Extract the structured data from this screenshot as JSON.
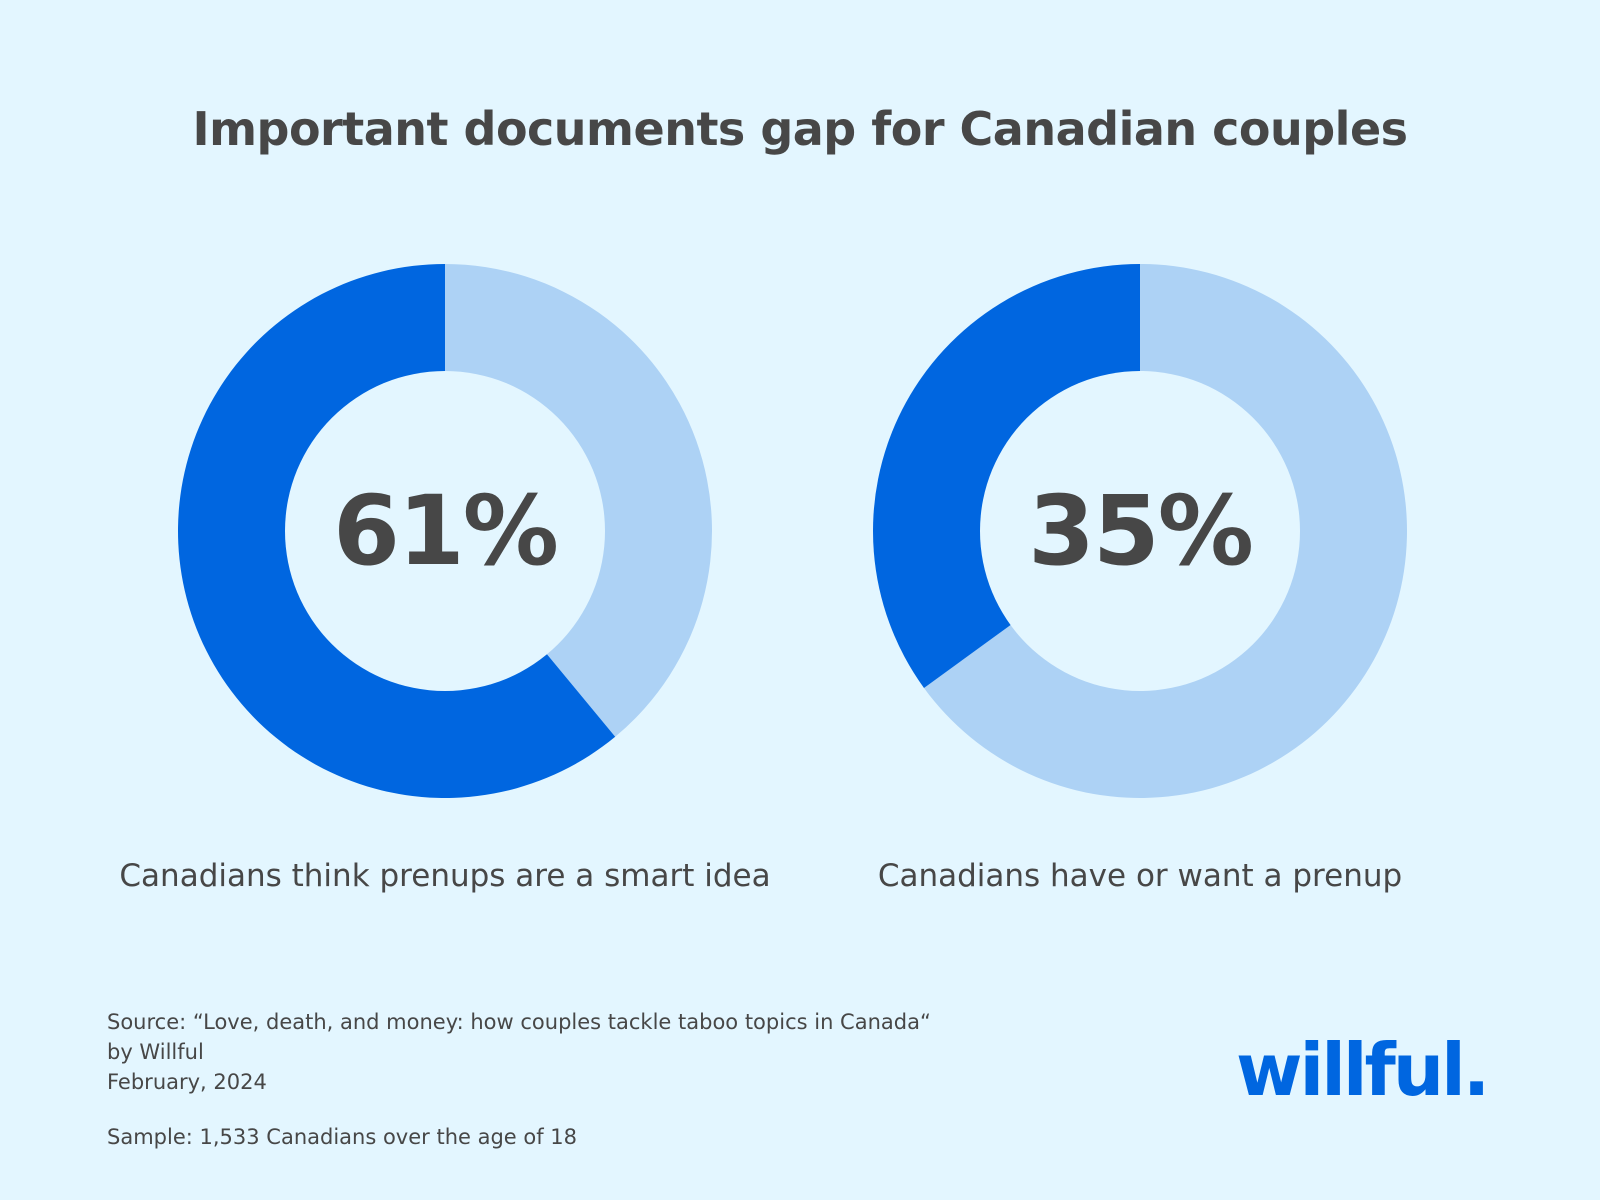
{
  "title": "Important documents gap for Canadian couples",
  "colors": {
    "background": "#e3f6ff",
    "primary": "#0066e0",
    "secondary": "#add2f5",
    "inner": "#e3f6ff",
    "text": "#474747"
  },
  "chart_data": [
    {
      "type": "pie",
      "value_percent": 61,
      "center_label": "61%",
      "caption": "Canadians think prenups are a smart idea"
    },
    {
      "type": "pie",
      "value_percent": 35,
      "center_label": "35%",
      "caption": "Canadians have or want a prenup"
    }
  ],
  "source": {
    "line1": "Source: “Love, death, and money: how couples tackle taboo topics in Canada“",
    "line2": "by Willful",
    "line3": "February, 2024"
  },
  "sample": "Sample: 1,533 Canadians over the age of 18",
  "logo_text": "willful."
}
